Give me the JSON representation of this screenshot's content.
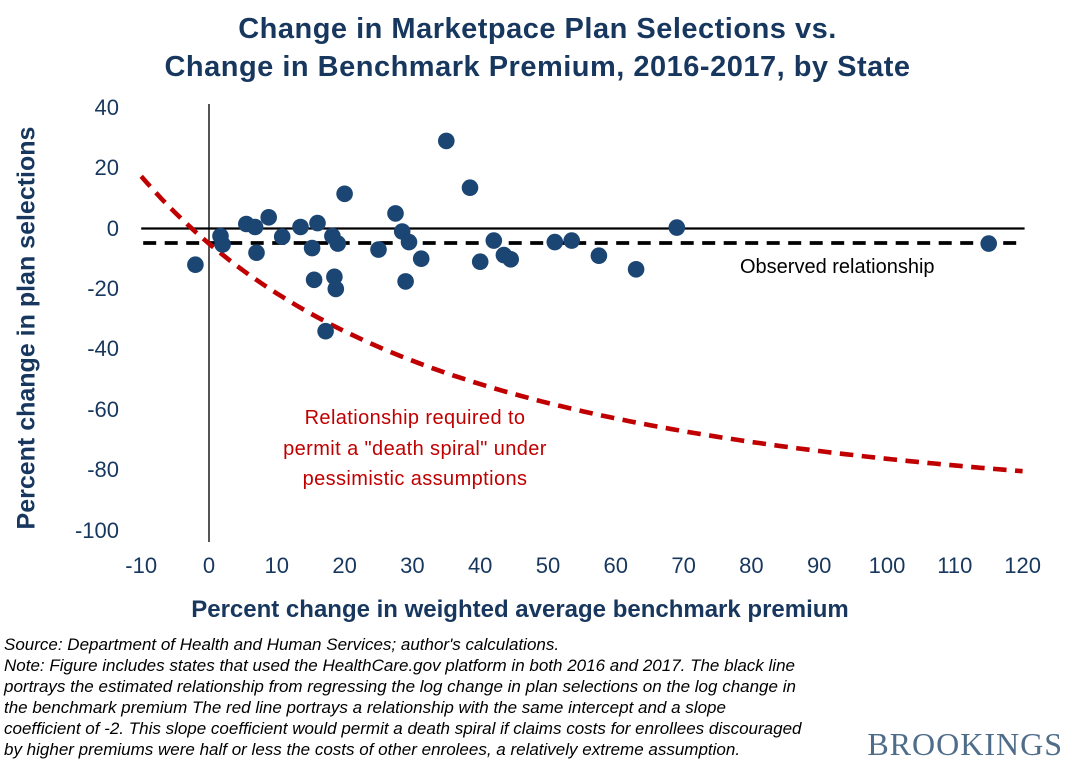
{
  "header": {
    "title_line1": "Change in Marketpace Plan Selections vs.",
    "title_line2": "Change in Benchmark Premium, 2016-2017, by State"
  },
  "chart_data": {
    "type": "scatter",
    "title": "Change in Marketpace Plan Selections vs. Change in Benchmark Premium, 2016-2017, by State",
    "xlabel": "Percent change in weighted average benchmark premium",
    "ylabel": "Percent change in plan selections",
    "xlim": [
      -10,
      120
    ],
    "ylim": [
      -100,
      40
    ],
    "x_ticks": [
      -10,
      0,
      10,
      20,
      30,
      40,
      50,
      60,
      70,
      80,
      90,
      100,
      110,
      120
    ],
    "y_ticks": [
      40,
      20,
      0,
      -20,
      -40,
      -60,
      -80,
      -100
    ],
    "grid": false,
    "point_color": "#1b4573",
    "points": [
      [
        -2,
        -12
      ],
      [
        1.7,
        -2.5
      ],
      [
        2,
        -5.3
      ],
      [
        5.5,
        1.5
      ],
      [
        6.8,
        0.5
      ],
      [
        7,
        -8
      ],
      [
        8.8,
        3.7
      ],
      [
        10.8,
        -2.7
      ],
      [
        13.5,
        0.5
      ],
      [
        15.2,
        -6.5
      ],
      [
        16,
        1.8
      ],
      [
        15.5,
        -17
      ],
      [
        17.2,
        -34
      ],
      [
        18.2,
        -2.5
      ],
      [
        19,
        -5
      ],
      [
        18.5,
        -16
      ],
      [
        18.7,
        -20
      ],
      [
        20,
        11.5
      ],
      [
        25,
        -7
      ],
      [
        27.5,
        5
      ],
      [
        28.5,
        -1
      ],
      [
        29.5,
        -4.5
      ],
      [
        29,
        -17.5
      ],
      [
        31.3,
        -10
      ],
      [
        35,
        29
      ],
      [
        38.5,
        13.5
      ],
      [
        40,
        -11
      ],
      [
        42,
        -4
      ],
      [
        43.5,
        -8.8
      ],
      [
        44.5,
        -10.2
      ],
      [
        51,
        -4.5
      ],
      [
        53.5,
        -4
      ],
      [
        57.5,
        -9
      ],
      [
        63,
        -13.5
      ],
      [
        69,
        0.3
      ],
      [
        115,
        -5
      ]
    ],
    "observed_line": {
      "label": "Observed relationship",
      "y_value": -4.8,
      "color": "#000000",
      "style": "dashed"
    },
    "death_spiral_curve": {
      "label": "Relationship required to permit a \"death spiral\" under pessimistic assumptions",
      "intercept_pct": -5,
      "slope_coefficient": -2,
      "color": "#c00000",
      "style": "dashed"
    }
  },
  "annotations": {
    "red_label_lines": [
      "Relationship required to",
      "permit a \"death spiral\" under",
      "pessimistic assumptions"
    ]
  },
  "footer": {
    "lines": [
      "Source:  Department  of Health  and Human  Services; author's calculations.",
      "Note: Figure  includes states that used the HealthCare.gov  platform  in both 2016 and 2017. The black line",
      "portrays the estimated  relationship from regressing  the log change  in plan  selections on the log change  in",
      "the benchmark  premium   The  red line portrays a relationship with the same  intercept and a slope",
      "coefficient of -2. This  slope coefficient would permit  a death spiral if claims  costs for enrollees  discouraged",
      "by higher  premiums   were half or less the costs of other enrolees, a relatively  extreme  assumption."
    ]
  },
  "branding": {
    "logo_text": "BROOKINGS"
  },
  "colors": {
    "navy_text": "#17375e",
    "point_fill": "#1b4573",
    "red_line": "#c00000",
    "black_line": "#000000",
    "brookings_logo": "#4f6d89"
  }
}
